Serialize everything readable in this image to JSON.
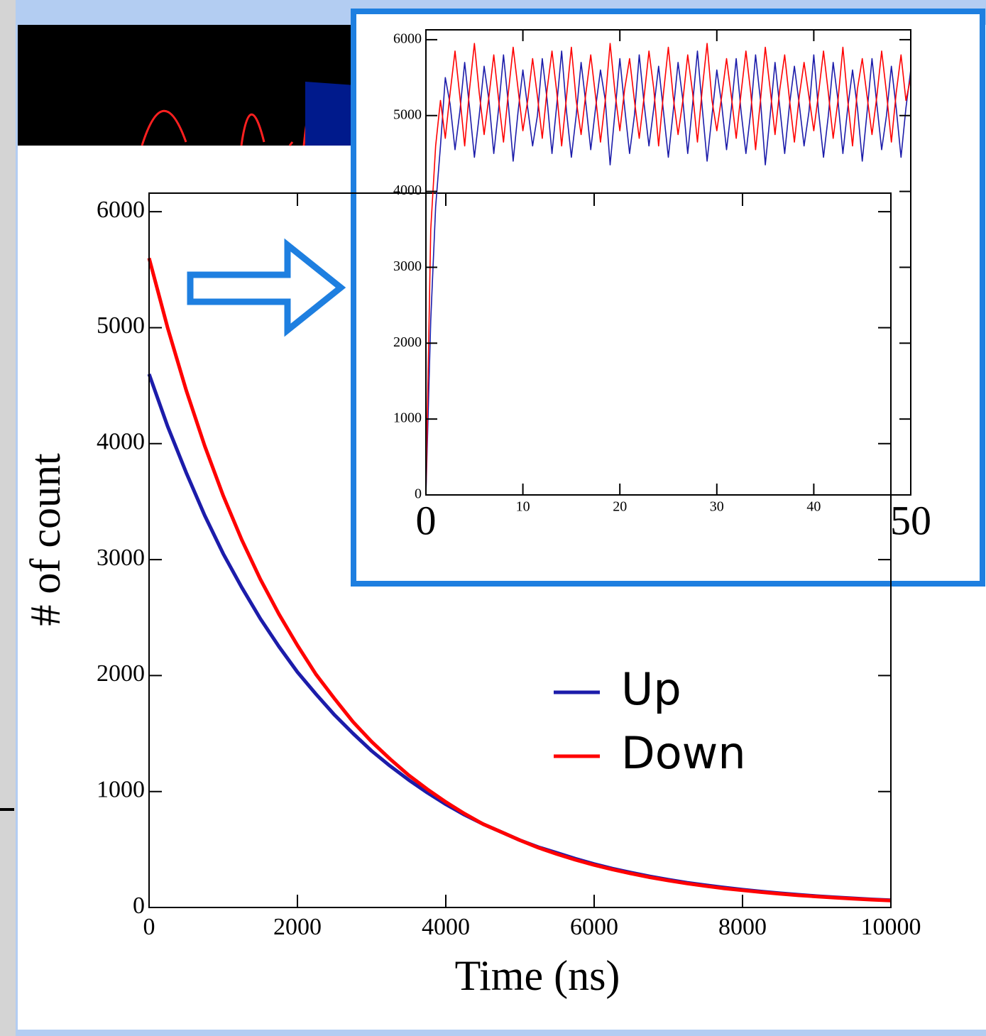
{
  "chart_data": [
    {
      "type": "line",
      "xlabel": "Time (ns)",
      "ylabel": "# of count",
      "xlim": [
        0,
        10000
      ],
      "ylim": [
        0,
        6160
      ],
      "xticks": [
        0,
        2000,
        4000,
        6000,
        8000,
        10000
      ],
      "yticks": [
        0,
        1000,
        2000,
        3000,
        4000,
        5000,
        6000
      ],
      "legend": "center right",
      "x": [
        0,
        250,
        500,
        750,
        1000,
        1250,
        1500,
        1750,
        2000,
        2250,
        2500,
        2750,
        3000,
        3250,
        3500,
        3750,
        4000,
        4250,
        4500,
        4750,
        5000,
        5250,
        5500,
        5750,
        6000,
        6250,
        6500,
        6750,
        7000,
        7250,
        7500,
        7750,
        8000,
        8250,
        8500,
        8750,
        9000,
        9250,
        9500,
        9750,
        10000
      ],
      "series": [
        {
          "name": "Up",
          "color": "#1c1caa",
          "values": [
            4600,
            4150,
            3750,
            3380,
            3050,
            2760,
            2490,
            2250,
            2030,
            1840,
            1660,
            1500,
            1350,
            1220,
            1100,
            990,
            890,
            800,
            720,
            650,
            580,
            520,
            470,
            420,
            375,
            335,
            300,
            268,
            240,
            214,
            192,
            172,
            154,
            138,
            123,
            110,
            98,
            88,
            79,
            70,
            63
          ]
        },
        {
          "name": "Down",
          "color": "#ff0000",
          "values": [
            5600,
            5000,
            4460,
            3980,
            3550,
            3170,
            2830,
            2530,
            2260,
            2010,
            1800,
            1600,
            1430,
            1280,
            1140,
            1020,
            910,
            810,
            720,
            650,
            580,
            515,
            460,
            410,
            366,
            327,
            292,
            260,
            232,
            207,
            185,
            165,
            148,
            132,
            118,
            105,
            94,
            84,
            75,
            67,
            60
          ]
        }
      ]
    },
    {
      "type": "line",
      "xlim": [
        0,
        50
      ],
      "ylim": [
        0,
        6130
      ],
      "xticks": [
        0,
        10,
        20,
        30,
        40,
        50
      ],
      "yticks": [
        0,
        1000,
        2000,
        3000,
        4000,
        5000,
        6000
      ],
      "x": [
        0,
        0.5,
        1,
        1.5,
        2,
        2.5,
        3,
        3.5,
        4,
        4.5,
        5,
        5.5,
        6,
        6.5,
        7,
        7.5,
        8,
        8.5,
        9,
        9.5,
        10,
        10.5,
        11,
        11.5,
        12,
        12.5,
        13,
        13.5,
        14,
        14.5,
        15,
        15.5,
        16,
        16.5,
        17,
        17.5,
        18,
        18.5,
        19,
        19.5,
        20,
        20.5,
        21,
        21.5,
        22,
        22.5,
        23,
        23.5,
        24,
        24.5,
        25,
        25.5,
        26,
        26.5,
        27,
        27.5,
        28,
        28.5,
        29,
        29.5,
        30,
        30.5,
        31,
        31.5,
        32,
        32.5,
        33,
        33.5,
        34,
        34.5,
        35,
        35.5,
        36,
        36.5,
        37,
        37.5,
        38,
        38.5,
        39,
        39.5,
        40,
        40.5,
        41,
        41.5,
        42,
        42.5,
        43,
        43.5,
        44,
        44.5,
        45,
        45.5,
        46,
        46.5,
        47,
        47.5,
        48,
        48.5,
        49,
        49.5,
        50
      ],
      "series": [
        {
          "name": "Up",
          "color": "#1c1caa",
          "values": [
            0,
            2300,
            3800,
            4600,
            5500,
            5150,
            4550,
            5050,
            5700,
            5100,
            4450,
            5000,
            5650,
            5200,
            4500,
            5100,
            5800,
            5150,
            4400,
            5050,
            5600,
            5100,
            4600,
            5000,
            5750,
            5200,
            4500,
            5150,
            5850,
            5050,
            4450,
            5000,
            5700,
            5150,
            4550,
            5100,
            5600,
            5200,
            4350,
            5050,
            5750,
            5100,
            4500,
            5000,
            5800,
            5150,
            4600,
            5100,
            5650,
            5050,
            4450,
            5050,
            5700,
            5200,
            4500,
            5150,
            5850,
            5100,
            4400,
            5000,
            5600,
            5150,
            4550,
            5100,
            5750,
            5050,
            4500,
            5050,
            5800,
            5200,
            4350,
            5000,
            5700,
            5100,
            4500,
            5150,
            5650,
            5150,
            4600,
            5050,
            5800,
            5050,
            4450,
            5000,
            5700,
            5200,
            4500,
            5100,
            5600,
            5100,
            4400,
            5050,
            5750,
            5150,
            4550,
            5000,
            5650,
            5100,
            4450,
            5100,
            5600
          ]
        },
        {
          "name": "Down",
          "color": "#ff0000",
          "values": [
            0,
            3500,
            4600,
            5200,
            4700,
            5300,
            5850,
            5250,
            4600,
            5350,
            5950,
            5300,
            4750,
            5250,
            5800,
            5200,
            4650,
            5300,
            5900,
            5350,
            4800,
            5200,
            5750,
            5250,
            4700,
            5350,
            5850,
            5300,
            4600,
            5250,
            5900,
            5200,
            4750,
            5300,
            5800,
            5250,
            4650,
            5200,
            5950,
            5300,
            4800,
            5350,
            5750,
            5200,
            4700,
            5250,
            5850,
            5350,
            4600,
            5300,
            5900,
            5250,
            4750,
            5200,
            5800,
            5300,
            4650,
            5350,
            5950,
            5200,
            4800,
            5250,
            5750,
            5250,
            4700,
            5300,
            5850,
            5300,
            4550,
            5200,
            5900,
            5350,
            4750,
            5350,
            5800,
            5200,
            4650,
            5250,
            5700,
            5250,
            4800,
            5300,
            5850,
            5300,
            4700,
            5200,
            5900,
            5200,
            4600,
            5350,
            5750,
            5250,
            4750,
            5250,
            5850,
            5300,
            4650,
            5300,
            5800,
            5200,
            5500
          ]
        }
      ]
    }
  ]
}
